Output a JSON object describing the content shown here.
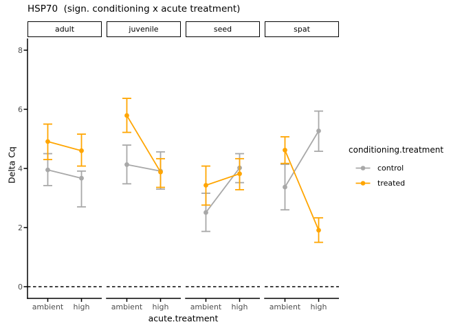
{
  "title": "HSP70  (sign. conditioning x acute treatment)",
  "colors": {
    "control": "#A8A8A8",
    "treated": "#FFA500",
    "axis_text": "#4D4D4D",
    "axis_line": "#000000",
    "hline": "#000000",
    "background": "#FFFFFF"
  },
  "legend": {
    "title": "conditioning.treatment",
    "entries": [
      {
        "id": "control",
        "label": "control"
      },
      {
        "id": "treated",
        "label": "treated"
      }
    ]
  },
  "chart_data": {
    "type": "line",
    "subtype": "point-with-errorbars-faceted",
    "title": "HSP70  (sign. conditioning x acute treatment)",
    "xlabel": "acute.treatment",
    "ylabel": "Delta Cq",
    "x_categories": [
      "ambient",
      "high"
    ],
    "yticks": [
      0,
      2,
      4,
      6,
      8
    ],
    "ylim": [
      -0.4,
      8.4
    ],
    "grid": "off",
    "legend_position": "right",
    "hline": {
      "y": 0,
      "style": "dashed",
      "color": "#000000"
    },
    "facets": [
      {
        "label": "adult",
        "series": [
          {
            "name": "control",
            "points": [
              {
                "x": "ambient",
                "y": 3.95,
                "ymin": 3.42,
                "ymax": 4.5
              },
              {
                "x": "high",
                "y": 3.67,
                "ymin": 2.7,
                "ymax": 3.91
              }
            ]
          },
          {
            "name": "treated",
            "points": [
              {
                "x": "ambient",
                "y": 4.91,
                "ymin": 4.3,
                "ymax": 5.5
              },
              {
                "x": "high",
                "y": 4.6,
                "ymin": 4.08,
                "ymax": 5.16
              }
            ]
          }
        ]
      },
      {
        "label": "juvenile",
        "series": [
          {
            "name": "control",
            "points": [
              {
                "x": "ambient",
                "y": 4.13,
                "ymin": 3.48,
                "ymax": 4.79
              },
              {
                "x": "high",
                "y": 3.91,
                "ymin": 3.3,
                "ymax": 4.56
              }
            ]
          },
          {
            "name": "treated",
            "points": [
              {
                "x": "ambient",
                "y": 5.79,
                "ymin": 5.22,
                "ymax": 6.37
              },
              {
                "x": "high",
                "y": 3.88,
                "ymin": 3.36,
                "ymax": 4.33
              }
            ]
          }
        ]
      },
      {
        "label": "seed",
        "series": [
          {
            "name": "control",
            "points": [
              {
                "x": "ambient",
                "y": 2.51,
                "ymin": 1.87,
                "ymax": 3.16
              },
              {
                "x": "high",
                "y": 4.02,
                "ymin": 3.52,
                "ymax": 4.5
              }
            ]
          },
          {
            "name": "treated",
            "points": [
              {
                "x": "ambient",
                "y": 3.43,
                "ymin": 2.76,
                "ymax": 4.08
              },
              {
                "x": "high",
                "y": 3.82,
                "ymin": 3.28,
                "ymax": 4.33
              }
            ]
          }
        ]
      },
      {
        "label": "spat",
        "series": [
          {
            "name": "control",
            "points": [
              {
                "x": "ambient",
                "y": 3.37,
                "ymin": 2.6,
                "ymax": 4.14
              },
              {
                "x": "high",
                "y": 5.27,
                "ymin": 4.58,
                "ymax": 5.94
              }
            ]
          },
          {
            "name": "treated",
            "points": [
              {
                "x": "ambient",
                "y": 4.62,
                "ymin": 4.17,
                "ymax": 5.07
              },
              {
                "x": "high",
                "y": 1.91,
                "ymin": 1.5,
                "ymax": 2.33
              }
            ]
          }
        ]
      }
    ]
  }
}
